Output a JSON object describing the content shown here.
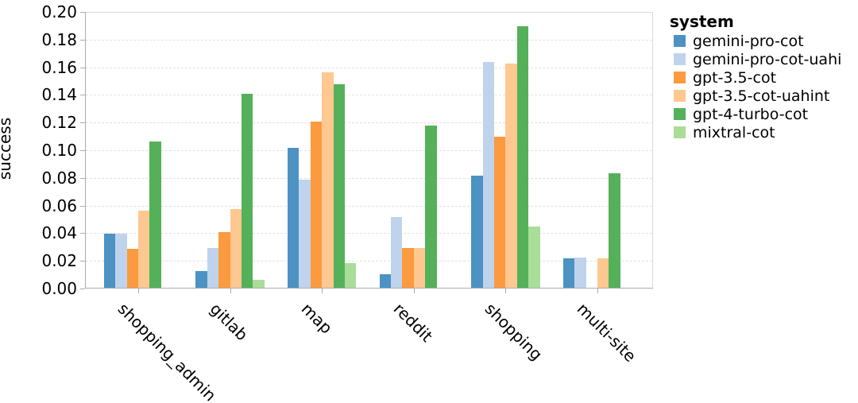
{
  "chart_data": {
    "type": "bar",
    "title": "",
    "xlabel": "",
    "ylabel": "success",
    "categories": [
      "shopping_admin",
      "gitlab",
      "map",
      "reddit",
      "shopping",
      "multi-site"
    ],
    "series": [
      {
        "name": "gemini-pro-cot",
        "color": "#4c92c3",
        "values": [
          0.039,
          0.012,
          0.101,
          0.01,
          0.081,
          0.021
        ]
      },
      {
        "name": "gemini-pro-cot-uahi",
        "color": "#bfd3ec",
        "values": [
          0.039,
          0.029,
          0.078,
          0.051,
          0.163,
          0.022
        ]
      },
      {
        "name": "gpt-3.5-cot",
        "color": "#fc9a3f",
        "values": [
          0.028,
          0.04,
          0.12,
          0.029,
          0.109,
          0.0
        ]
      },
      {
        "name": "gpt-3.5-cot-uahint",
        "color": "#fec890",
        "values": [
          0.056,
          0.057,
          0.156,
          0.029,
          0.162,
          0.021
        ]
      },
      {
        "name": "gpt-4-turbo-cot",
        "color": "#54b15a",
        "values": [
          0.106,
          0.14,
          0.147,
          0.117,
          0.189,
          0.083
        ]
      },
      {
        "name": "mixtral-cot",
        "color": "#aadd98",
        "values": [
          0.0,
          0.006,
          0.018,
          0.0,
          0.044,
          0.0
        ]
      }
    ],
    "ylim": [
      0.0,
      0.2
    ],
    "ytick_labels": [
      "0.00",
      "0.02",
      "0.04",
      "0.06",
      "0.08",
      "0.10",
      "0.12",
      "0.14",
      "0.16",
      "0.18",
      "0.20"
    ],
    "grid": "horizontal-dashed",
    "legend": {
      "title": "system",
      "position": "right-top"
    }
  }
}
